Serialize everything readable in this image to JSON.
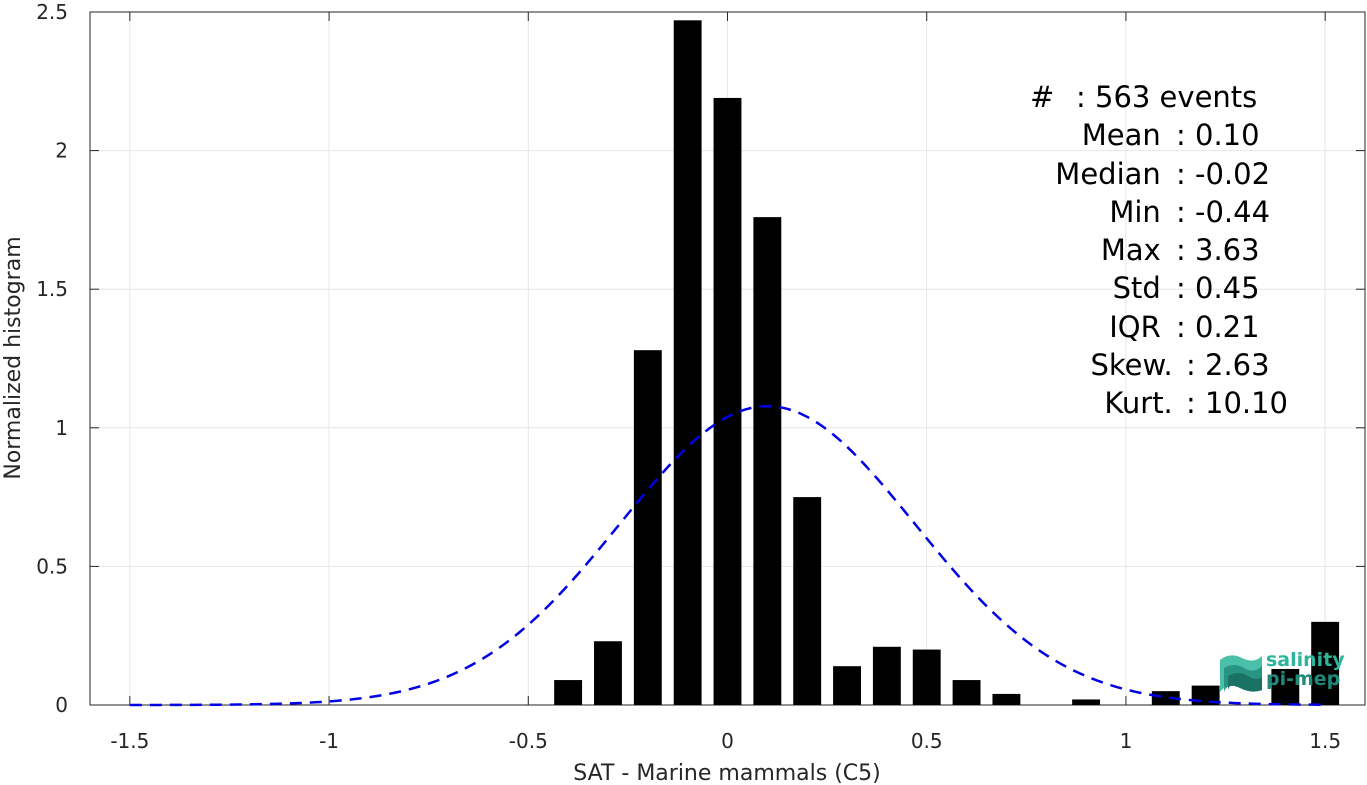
{
  "chart_data": {
    "type": "bar",
    "xlabel": "SAT - Marine mammals (C5)",
    "ylabel": "Normalized histogram",
    "xlim": [
      -1.6,
      1.6
    ],
    "ylim": [
      0,
      2.5
    ],
    "xticks": [
      -1.5,
      -1,
      -0.5,
      0,
      0.5,
      1,
      1.5
    ],
    "xtick_labels": [
      "-1.5",
      "-1",
      "-0.5",
      "0",
      "0.5",
      "1",
      "1.5"
    ],
    "yticks": [
      0,
      0.5,
      1,
      1.5,
      2,
      2.5
    ],
    "ytick_labels": [
      "0",
      "0.5",
      "1",
      "1.5",
      "2",
      "2.5"
    ],
    "grid": true,
    "bar_width": 0.07,
    "bars": {
      "x": [
        -0.4,
        -0.3,
        -0.2,
        -0.1,
        0.0,
        0.1,
        0.2,
        0.3,
        0.4,
        0.5,
        0.6,
        0.7,
        0.8,
        0.9,
        1.0,
        1.1,
        1.2,
        1.3,
        1.4,
        1.5
      ],
      "values": [
        0.09,
        0.23,
        1.28,
        2.47,
        2.19,
        1.76,
        0.75,
        0.14,
        0.21,
        0.2,
        0.09,
        0.04,
        0.0,
        0.02,
        0.0,
        0.05,
        0.07,
        0.0,
        0.13,
        0.3
      ],
      "color": "#000000"
    },
    "normal_fit": {
      "mean": 0.1,
      "std": 0.37,
      "x_range": [
        -1.5,
        1.5
      ],
      "color": "#0000e6",
      "style": "dashed"
    }
  },
  "stats": [
    {
      "key": "#  ",
      "value": ": 563 events"
    },
    {
      "key": "Mean ",
      "value": ": 0.10"
    },
    {
      "key": "Median ",
      "value": ": -0.02"
    },
    {
      "key": "Min ",
      "value": ": -0.44"
    },
    {
      "key": "Max ",
      "value": ": 3.63"
    },
    {
      "key": "Std ",
      "value": ": 0.45"
    },
    {
      "key": "IQR ",
      "value": ": 0.21"
    },
    {
      "key": "Skew. ",
      "value": ": 2.63"
    },
    {
      "key": "Kurt. ",
      "value": ": 10.10"
    }
  ],
  "logo": {
    "line1": "salinity",
    "line2": "pi-mep"
  }
}
